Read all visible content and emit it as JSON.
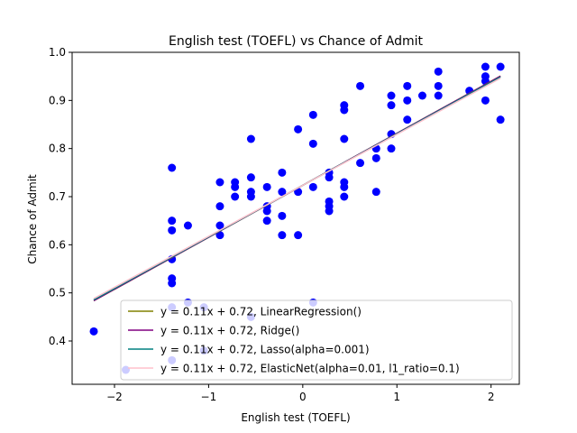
{
  "chart_data": {
    "type": "scatter",
    "title": "English test (TOEFL) vs Chance of Admit",
    "xlabel": "English test (TOEFL)",
    "ylabel": "Chance of Admit",
    "xlim": [
      -2.45,
      2.3
    ],
    "ylim": [
      0.31,
      1.0
    ],
    "xticks": [
      -2,
      -1,
      0,
      1,
      2
    ],
    "xtick_labels": [
      "−2",
      "−1",
      "0",
      "1",
      "2"
    ],
    "yticks": [
      0.4,
      0.5,
      0.6,
      0.7,
      0.8,
      0.9,
      1.0
    ],
    "ytick_labels": [
      "0.4",
      "0.5",
      "0.6",
      "0.7",
      "0.8",
      "0.9",
      "1.0"
    ],
    "grid": false,
    "legend_position": "lower-right",
    "scatter_color": "#0000ff",
    "points": [
      [
        -2.22,
        0.42
      ],
      [
        -1.88,
        0.34
      ],
      [
        -1.39,
        0.76
      ],
      [
        -1.39,
        0.65
      ],
      [
        -1.39,
        0.63
      ],
      [
        -1.39,
        0.57
      ],
      [
        -1.39,
        0.53
      ],
      [
        -1.39,
        0.52
      ],
      [
        -1.39,
        0.47
      ],
      [
        -1.39,
        0.36
      ],
      [
        -1.22,
        0.64
      ],
      [
        -1.22,
        0.48
      ],
      [
        -1.05,
        0.47
      ],
      [
        -1.05,
        0.38
      ],
      [
        -0.88,
        0.73
      ],
      [
        -0.88,
        0.68
      ],
      [
        -0.88,
        0.64
      ],
      [
        -0.88,
        0.62
      ],
      [
        -0.72,
        0.73
      ],
      [
        -0.72,
        0.72
      ],
      [
        -0.72,
        0.7
      ],
      [
        -0.55,
        0.82
      ],
      [
        -0.55,
        0.74
      ],
      [
        -0.55,
        0.71
      ],
      [
        -0.55,
        0.7
      ],
      [
        -0.55,
        0.45
      ],
      [
        -0.38,
        0.72
      ],
      [
        -0.38,
        0.68
      ],
      [
        -0.38,
        0.67
      ],
      [
        -0.38,
        0.65
      ],
      [
        -0.22,
        0.75
      ],
      [
        -0.22,
        0.71
      ],
      [
        -0.22,
        0.66
      ],
      [
        -0.22,
        0.62
      ],
      [
        -0.05,
        0.84
      ],
      [
        -0.05,
        0.71
      ],
      [
        -0.05,
        0.62
      ],
      [
        0.11,
        0.87
      ],
      [
        0.11,
        0.81
      ],
      [
        0.11,
        0.72
      ],
      [
        0.11,
        0.48
      ],
      [
        0.28,
        0.75
      ],
      [
        0.28,
        0.74
      ],
      [
        0.28,
        0.69
      ],
      [
        0.28,
        0.68
      ],
      [
        0.28,
        0.67
      ],
      [
        0.44,
        0.89
      ],
      [
        0.44,
        0.88
      ],
      [
        0.44,
        0.82
      ],
      [
        0.44,
        0.73
      ],
      [
        0.44,
        0.72
      ],
      [
        0.44,
        0.7
      ],
      [
        0.61,
        0.93
      ],
      [
        0.61,
        0.77
      ],
      [
        0.78,
        0.8
      ],
      [
        0.78,
        0.78
      ],
      [
        0.78,
        0.71
      ],
      [
        0.94,
        0.91
      ],
      [
        0.94,
        0.89
      ],
      [
        0.94,
        0.83
      ],
      [
        0.94,
        0.8
      ],
      [
        1.11,
        0.93
      ],
      [
        1.11,
        0.9
      ],
      [
        1.11,
        0.86
      ],
      [
        1.27,
        0.91
      ],
      [
        1.44,
        0.96
      ],
      [
        1.44,
        0.93
      ],
      [
        1.44,
        0.91
      ],
      [
        1.77,
        0.92
      ],
      [
        1.94,
        0.97
      ],
      [
        1.94,
        0.95
      ],
      [
        1.94,
        0.94
      ],
      [
        1.94,
        0.9
      ],
      [
        2.1,
        0.97
      ],
      [
        2.1,
        0.86
      ]
    ],
    "fit_x_range": [
      -2.22,
      2.1
    ],
    "series": [
      {
        "name": "y = 0.11x + 0.72, LinearRegression()",
        "slope": 0.1081,
        "intercept": 0.7236,
        "color": "#808000"
      },
      {
        "name": "y = 0.11x + 0.72, Ridge()",
        "slope": 0.108,
        "intercept": 0.7236,
        "color": "#800080"
      },
      {
        "name": "y = 0.11x + 0.72, Lasso(alpha=0.001)",
        "slope": 0.1072,
        "intercept": 0.7236,
        "color": "#008080"
      },
      {
        "name": "y = 0.11x + 0.72, ElasticNet(alpha=0.01, l1_ratio=0.1)",
        "slope": 0.106,
        "intercept": 0.7236,
        "color": "#ffc0cb"
      }
    ]
  }
}
